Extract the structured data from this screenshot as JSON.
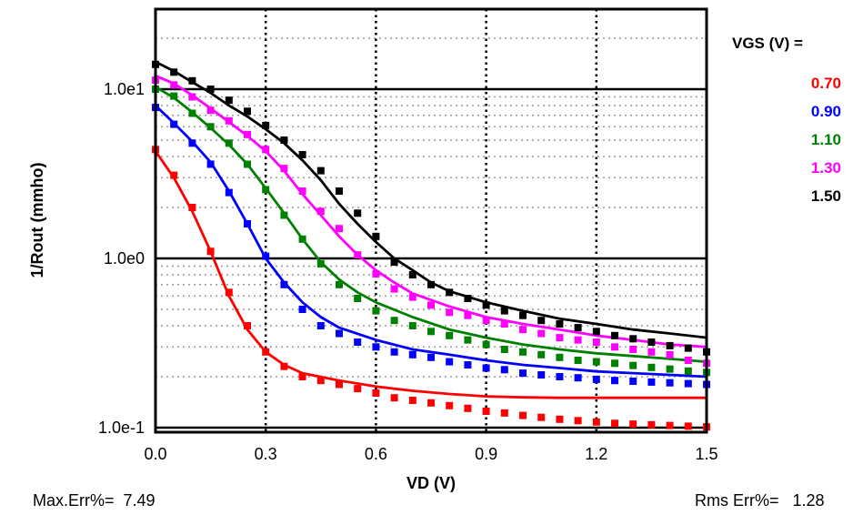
{
  "chart_data": {
    "type": "line",
    "title": "",
    "xlabel": "VD (V)",
    "ylabel": "1/Rout (mmho)",
    "xlim": [
      0,
      1.5
    ],
    "ylim": [
      0.1,
      30
    ],
    "yscale": "log",
    "x_ticks": [
      0,
      0.3,
      0.6,
      0.9,
      1.2,
      1.5
    ],
    "x_tick_labels": [
      "0.0",
      "0.3",
      "0.6",
      "0.9",
      "1.2",
      "1.5"
    ],
    "y_ticks": [
      0.1,
      1,
      10
    ],
    "y_tick_labels": [
      "1.0e-1",
      "1.0e0",
      "1.0e1"
    ],
    "grid": true,
    "legend_title": "VGS (V) =",
    "legend_position": "right",
    "series": [
      {
        "name": "0.70",
        "color": "#ff0000",
        "line": {
          "x": [
            0,
            0.05,
            0.1,
            0.15,
            0.2,
            0.25,
            0.3,
            0.35,
            0.4,
            0.5,
            0.6,
            0.7,
            0.8,
            0.9,
            1.0,
            1.1,
            1.2,
            1.3,
            1.4,
            1.5
          ],
          "y": [
            4.3,
            3.0,
            1.9,
            1.1,
            0.6,
            0.38,
            0.28,
            0.235,
            0.21,
            0.19,
            0.175,
            0.165,
            0.158,
            0.153,
            0.151,
            0.15,
            0.15,
            0.15,
            0.15,
            0.15
          ]
        },
        "points": {
          "x": [
            0,
            0.05,
            0.1,
            0.15,
            0.2,
            0.25,
            0.3,
            0.35,
            0.4,
            0.45,
            0.5,
            0.55,
            0.6,
            0.65,
            0.7,
            0.75,
            0.8,
            0.85,
            0.9,
            0.95,
            1.0,
            1.05,
            1.1,
            1.15,
            1.2,
            1.25,
            1.3,
            1.35,
            1.4,
            1.45,
            1.5
          ],
          "y": [
            4.4,
            3.1,
            2.0,
            1.1,
            0.63,
            0.4,
            0.28,
            0.23,
            0.2,
            0.19,
            0.18,
            0.17,
            0.16,
            0.15,
            0.145,
            0.14,
            0.135,
            0.13,
            0.125,
            0.122,
            0.118,
            0.115,
            0.112,
            0.11,
            0.108,
            0.106,
            0.105,
            0.104,
            0.103,
            0.102,
            0.101
          ]
        }
      },
      {
        "name": "0.90",
        "color": "#0000ff",
        "line": {
          "x": [
            0,
            0.05,
            0.1,
            0.15,
            0.2,
            0.25,
            0.3,
            0.35,
            0.4,
            0.45,
            0.5,
            0.6,
            0.7,
            0.8,
            0.9,
            1.0,
            1.1,
            1.2,
            1.3,
            1.4,
            1.5
          ],
          "y": [
            8.0,
            6.3,
            4.9,
            3.7,
            2.5,
            1.6,
            1.0,
            0.72,
            0.55,
            0.45,
            0.39,
            0.33,
            0.29,
            0.27,
            0.25,
            0.235,
            0.225,
            0.215,
            0.21,
            0.205,
            0.2
          ]
        },
        "points": {
          "x": [
            0,
            0.05,
            0.1,
            0.15,
            0.2,
            0.25,
            0.3,
            0.35,
            0.4,
            0.45,
            0.5,
            0.55,
            0.6,
            0.65,
            0.7,
            0.75,
            0.8,
            0.85,
            0.9,
            0.95,
            1.0,
            1.05,
            1.1,
            1.15,
            1.2,
            1.25,
            1.3,
            1.35,
            1.4,
            1.45,
            1.5
          ],
          "y": [
            7.8,
            6.2,
            4.8,
            3.6,
            2.45,
            1.6,
            1.03,
            0.7,
            0.5,
            0.4,
            0.36,
            0.32,
            0.3,
            0.28,
            0.27,
            0.26,
            0.245,
            0.235,
            0.225,
            0.22,
            0.21,
            0.205,
            0.2,
            0.197,
            0.193,
            0.19,
            0.188,
            0.186,
            0.184,
            0.182,
            0.18
          ]
        }
      },
      {
        "name": "1.10",
        "color": "#008000",
        "line": {
          "x": [
            0,
            0.05,
            0.1,
            0.15,
            0.2,
            0.25,
            0.3,
            0.35,
            0.4,
            0.45,
            0.5,
            0.55,
            0.6,
            0.7,
            0.8,
            0.9,
            1.0,
            1.1,
            1.2,
            1.3,
            1.4,
            1.5
          ],
          "y": [
            10.3,
            8.9,
            7.3,
            5.9,
            4.7,
            3.6,
            2.6,
            1.85,
            1.3,
            0.95,
            0.75,
            0.63,
            0.55,
            0.45,
            0.38,
            0.34,
            0.31,
            0.29,
            0.275,
            0.265,
            0.255,
            0.245
          ]
        },
        "points": {
          "x": [
            0,
            0.05,
            0.1,
            0.15,
            0.2,
            0.25,
            0.3,
            0.35,
            0.4,
            0.45,
            0.5,
            0.55,
            0.6,
            0.65,
            0.7,
            0.75,
            0.8,
            0.85,
            0.9,
            0.95,
            1.0,
            1.05,
            1.1,
            1.15,
            1.2,
            1.25,
            1.3,
            1.35,
            1.4,
            1.45,
            1.5
          ],
          "y": [
            10.0,
            9.1,
            7.2,
            6.0,
            4.8,
            3.6,
            2.55,
            1.8,
            1.3,
            0.93,
            0.7,
            0.58,
            0.49,
            0.43,
            0.4,
            0.37,
            0.35,
            0.33,
            0.31,
            0.29,
            0.28,
            0.27,
            0.26,
            0.25,
            0.245,
            0.24,
            0.233,
            0.227,
            0.222,
            0.216,
            0.212
          ]
        }
      },
      {
        "name": "1.30",
        "color": "#ff00ff",
        "line": {
          "x": [
            0,
            0.05,
            0.1,
            0.15,
            0.2,
            0.25,
            0.3,
            0.35,
            0.4,
            0.45,
            0.5,
            0.55,
            0.6,
            0.65,
            0.7,
            0.8,
            0.9,
            1.0,
            1.1,
            1.2,
            1.3,
            1.4,
            1.5
          ],
          "y": [
            12.0,
            10.8,
            9.2,
            7.7,
            6.4,
            5.3,
            4.3,
            3.3,
            2.4,
            1.8,
            1.35,
            1.05,
            0.85,
            0.72,
            0.62,
            0.52,
            0.45,
            0.41,
            0.38,
            0.35,
            0.33,
            0.31,
            0.3
          ]
        },
        "points": {
          "x": [
            0,
            0.05,
            0.1,
            0.15,
            0.2,
            0.25,
            0.3,
            0.35,
            0.4,
            0.45,
            0.5,
            0.55,
            0.6,
            0.65,
            0.7,
            0.75,
            0.8,
            0.85,
            0.9,
            0.95,
            1.0,
            1.05,
            1.1,
            1.15,
            1.2,
            1.25,
            1.3,
            1.35,
            1.4,
            1.45,
            1.5
          ],
          "y": [
            11.3,
            10.6,
            9.0,
            7.5,
            6.5,
            5.4,
            4.4,
            3.4,
            2.5,
            1.9,
            1.5,
            1.05,
            0.81,
            0.66,
            0.59,
            0.53,
            0.48,
            0.46,
            0.43,
            0.41,
            0.38,
            0.36,
            0.34,
            0.33,
            0.32,
            0.3,
            0.29,
            0.28,
            0.27,
            0.25,
            0.24
          ]
        }
      },
      {
        "name": "1.50",
        "color": "#000000",
        "line": {
          "x": [
            0,
            0.05,
            0.1,
            0.15,
            0.2,
            0.25,
            0.3,
            0.35,
            0.4,
            0.45,
            0.5,
            0.55,
            0.6,
            0.65,
            0.7,
            0.75,
            0.8,
            0.9,
            1.0,
            1.1,
            1.2,
            1.3,
            1.4,
            1.5
          ],
          "y": [
            14.5,
            12.8,
            11.0,
            9.5,
            8.0,
            6.9,
            5.8,
            4.8,
            3.8,
            2.9,
            2.1,
            1.6,
            1.25,
            1.0,
            0.85,
            0.72,
            0.64,
            0.55,
            0.49,
            0.44,
            0.41,
            0.38,
            0.36,
            0.34
          ]
        },
        "points": {
          "x": [
            0,
            0.05,
            0.1,
            0.15,
            0.2,
            0.25,
            0.3,
            0.35,
            0.4,
            0.45,
            0.5,
            0.55,
            0.6,
            0.65,
            0.7,
            0.75,
            0.8,
            0.85,
            0.9,
            0.95,
            1.0,
            1.05,
            1.1,
            1.15,
            1.2,
            1.25,
            1.3,
            1.35,
            1.4,
            1.45,
            1.5
          ],
          "y": [
            14.0,
            12.6,
            11.2,
            10.0,
            8.6,
            7.4,
            6.1,
            5.0,
            4.1,
            3.3,
            2.5,
            1.85,
            1.35,
            0.95,
            0.8,
            0.7,
            0.63,
            0.58,
            0.53,
            0.49,
            0.46,
            0.43,
            0.41,
            0.39,
            0.37,
            0.35,
            0.335,
            0.32,
            0.305,
            0.295,
            0.28
          ]
        }
      }
    ]
  },
  "footer": {
    "max_err": "Max.Err%=  7.49",
    "rms_err": "Rms Err%=   1.28"
  }
}
